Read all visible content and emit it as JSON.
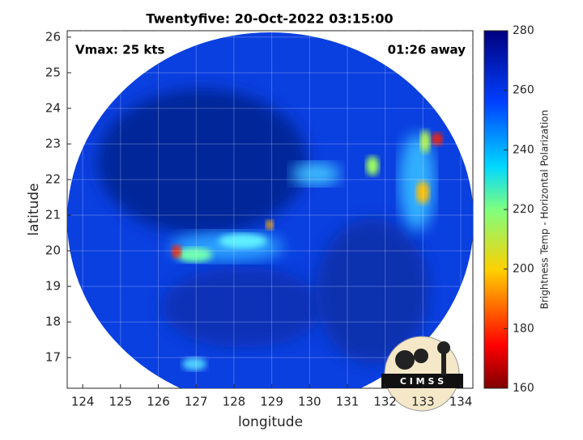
{
  "chart_data": {
    "type": "map",
    "title": "Twentyfive: 20-Oct-2022 03:15:00",
    "annotations": [
      "Vmax: 25 kts",
      "01:26 away"
    ],
    "x_label": "longitude",
    "y_label": "latitude",
    "xlim": [
      123.59,
      134.32
    ],
    "ylim": [
      16.14,
      26.18
    ],
    "xticks": [
      124,
      125,
      126,
      127,
      128,
      129,
      130,
      131,
      132,
      133,
      134
    ],
    "yticks": [
      17,
      18,
      19,
      20,
      21,
      22,
      23,
      24,
      25,
      26
    ],
    "grid": true,
    "colorbar": {
      "label": "Brightness Temp - Horizontal Polarization",
      "lim": [
        160,
        280
      ],
      "ticks": [
        160,
        180,
        200,
        220,
        240,
        260,
        280
      ]
    },
    "logo": "C I M S S"
  }
}
